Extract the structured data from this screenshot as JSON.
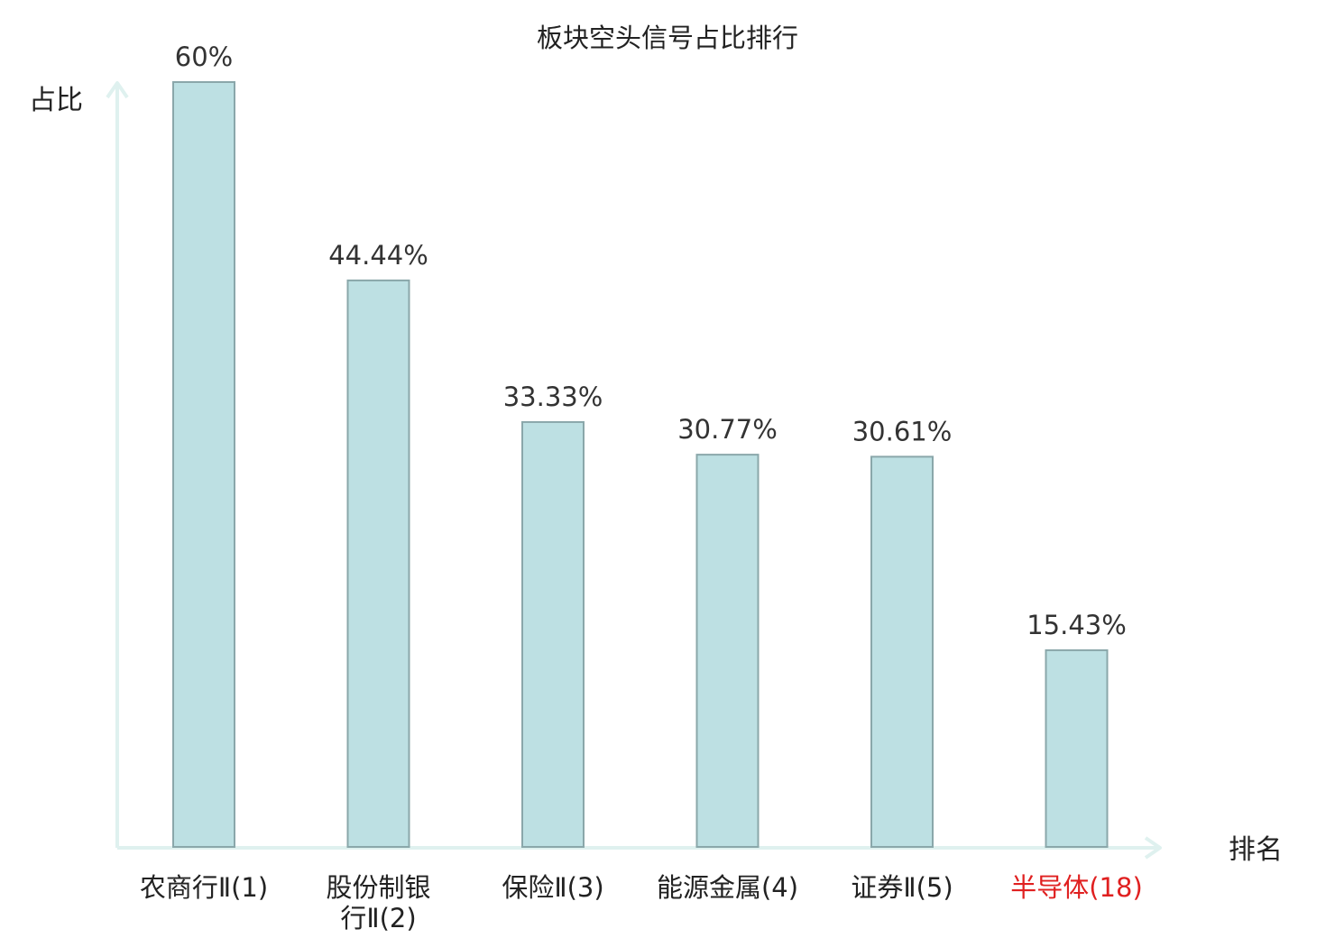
{
  "chart_data": {
    "type": "bar",
    "title": "板块空头信号占比排行",
    "ylabel": "占比",
    "xlabel": "排名",
    "ylim": [
      0,
      60
    ],
    "grid": false,
    "categories": [
      [
        "农商行Ⅱ(1)"
      ],
      [
        "股份制银",
        "行Ⅱ(2)"
      ],
      [
        "保险Ⅱ(3)"
      ],
      [
        "能源金属(4)"
      ],
      [
        "证券Ⅱ(5)"
      ],
      [
        "半导体(18)"
      ]
    ],
    "values": [
      60,
      44.44,
      33.33,
      30.77,
      30.61,
      15.43
    ],
    "data_labels": [
      "60%",
      "44.44%",
      "33.33%",
      "30.77%",
      "30.61%",
      "15.43%"
    ],
    "highlight_index": 5
  },
  "colors": {
    "bar_fill": "#bde0e3",
    "bar_stroke": "#8aa7aa",
    "axis": "#dff1ef",
    "text": "#222222",
    "highlight": "#e02020"
  }
}
